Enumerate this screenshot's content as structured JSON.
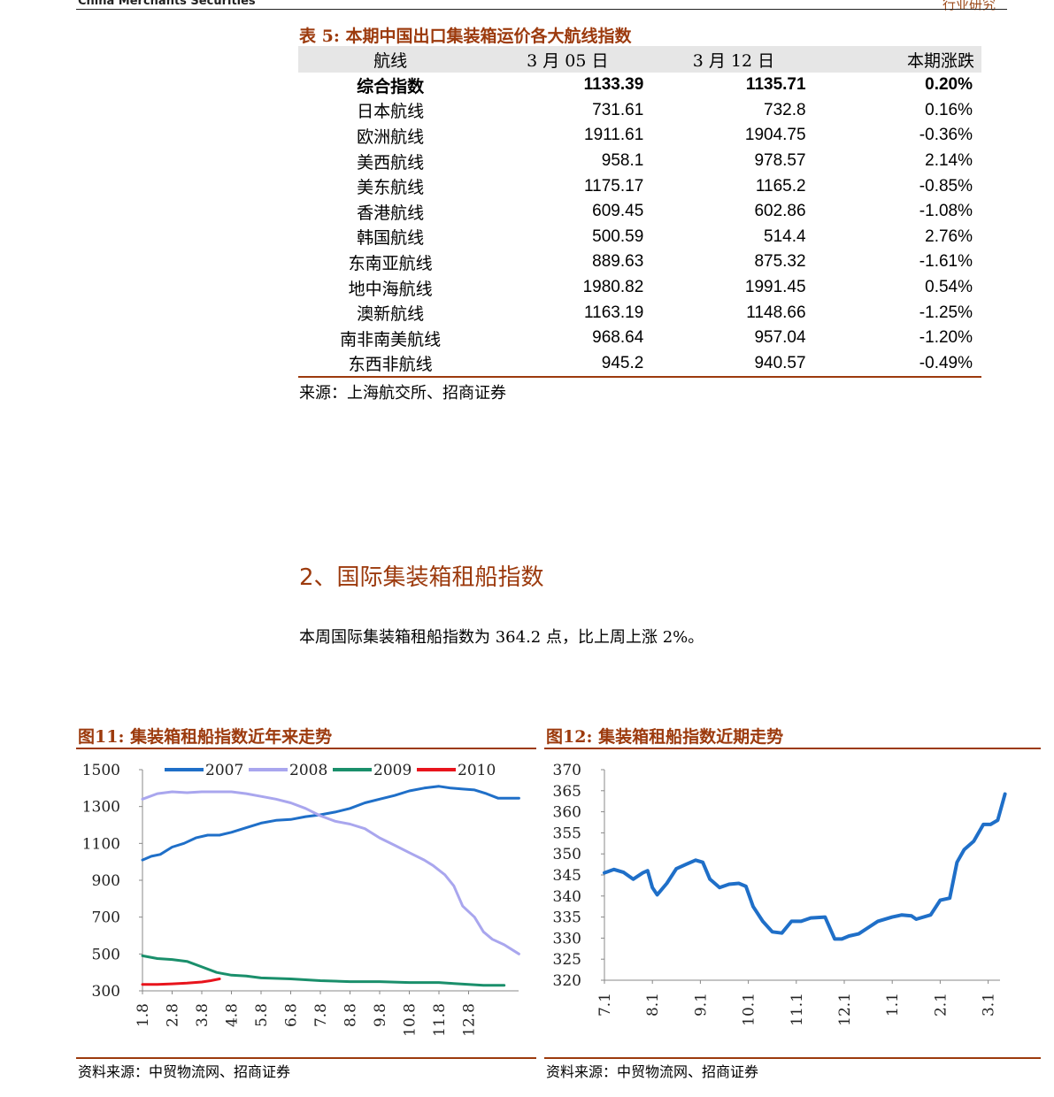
{
  "header": {
    "left": "China Merchants Securities",
    "right": "行业研究"
  },
  "table": {
    "title": "表 5:  本期中国出口集装箱运价各大航线指数",
    "headers": [
      "航线",
      "3 月 05 日",
      "3 月 12 日",
      "本期涨跌"
    ],
    "rows": [
      [
        "综合指数",
        "1133.39",
        "1135.71",
        "0.20%"
      ],
      [
        "日本航线",
        "731.61",
        "732.8",
        "0.16%"
      ],
      [
        "欧洲航线",
        "1911.61",
        "1904.75",
        "-0.36%"
      ],
      [
        "美西航线",
        "958.1",
        "978.57",
        "2.14%"
      ],
      [
        "美东航线",
        "1175.17",
        "1165.2",
        "-0.85%"
      ],
      [
        "香港航线",
        "609.45",
        "602.86",
        "-1.08%"
      ],
      [
        "韩国航线",
        "500.59",
        "514.4",
        "2.76%"
      ],
      [
        "东南亚航线",
        "889.63",
        "875.32",
        "-1.61%"
      ],
      [
        "地中海航线",
        "1980.82",
        "1991.45",
        "0.54%"
      ],
      [
        "澳新航线",
        "1163.19",
        "1148.66",
        "-1.25%"
      ],
      [
        "南非南美航线",
        "968.64",
        "957.04",
        "-1.20%"
      ],
      [
        "东西非航线",
        "945.2",
        "940.57",
        "-0.49%"
      ]
    ],
    "source": "来源：上海航交所、招商证券"
  },
  "section": {
    "title": "2、国际集装箱租船指数",
    "paragraph": "本周国际集装箱租船指数为 364.2 点，比上周上涨 2%。"
  },
  "figures": {
    "fig11_title": "图11:  集装箱租船指数近年来走势",
    "fig12_title": "图12:  集装箱租船指数近期走势",
    "fig11_source": "资料来源：中贸物流网、招商证券",
    "fig12_source": "资料来源：中贸物流网、招商证券"
  },
  "chart_data": [
    {
      "type": "line",
      "title": "图11:  集装箱租船指数近年来走势",
      "x": [
        "1.8",
        "2.8",
        "3.8",
        "4.8",
        "5.8",
        "6.8",
        "7.8",
        "8.8",
        "9.8",
        "10.8",
        "11.8",
        "12.8"
      ],
      "ylim": [
        300,
        1500
      ],
      "yticks": [
        1500,
        1300,
        1100,
        900,
        700,
        500,
        300
      ],
      "legend": "top",
      "series": [
        {
          "name": "2007",
          "color": "#1f6fc8",
          "points": [
            [
              0,
              1010
            ],
            [
              0.3,
              1030
            ],
            [
              0.6,
              1040
            ],
            [
              1,
              1080
            ],
            [
              1.4,
              1100
            ],
            [
              1.8,
              1130
            ],
            [
              2.2,
              1145
            ],
            [
              2.6,
              1145
            ],
            [
              3,
              1160
            ],
            [
              3.5,
              1185
            ],
            [
              4,
              1210
            ],
            [
              4.5,
              1225
            ],
            [
              5,
              1230
            ],
            [
              5.5,
              1245
            ],
            [
              6,
              1255
            ],
            [
              6.5,
              1270
            ],
            [
              7,
              1290
            ],
            [
              7.5,
              1320
            ],
            [
              8,
              1340
            ],
            [
              8.5,
              1360
            ],
            [
              9,
              1385
            ],
            [
              9.5,
              1400
            ],
            [
              10,
              1410
            ],
            [
              10.4,
              1400
            ],
            [
              10.8,
              1395
            ],
            [
              11.2,
              1390
            ],
            [
              11.6,
              1370
            ],
            [
              12,
              1345
            ],
            [
              12.4,
              1345
            ],
            [
              12.7,
              1345
            ]
          ]
        },
        {
          "name": "2008",
          "color": "#a9a6ee",
          "points": [
            [
              0,
              1340
            ],
            [
              0.5,
              1370
            ],
            [
              1,
              1380
            ],
            [
              1.5,
              1375
            ],
            [
              2,
              1380
            ],
            [
              2.5,
              1380
            ],
            [
              3,
              1380
            ],
            [
              3.5,
              1370
            ],
            [
              4,
              1355
            ],
            [
              4.5,
              1340
            ],
            [
              5,
              1320
            ],
            [
              5.5,
              1290
            ],
            [
              6,
              1250
            ],
            [
              6.5,
              1220
            ],
            [
              7,
              1205
            ],
            [
              7.5,
              1180
            ],
            [
              8,
              1130
            ],
            [
              8.5,
              1090
            ],
            [
              9,
              1050
            ],
            [
              9.5,
              1010
            ],
            [
              9.8,
              980
            ],
            [
              10.2,
              930
            ],
            [
              10.5,
              870
            ],
            [
              10.8,
              760
            ],
            [
              11.2,
              700
            ],
            [
              11.5,
              620
            ],
            [
              11.8,
              580
            ],
            [
              12.2,
              550
            ],
            [
              12.5,
              520
            ],
            [
              12.7,
              500
            ]
          ]
        },
        {
          "name": "2009",
          "color": "#1a8f6b",
          "points": [
            [
              0,
              490
            ],
            [
              0.5,
              475
            ],
            [
              1,
              470
            ],
            [
              1.5,
              460
            ],
            [
              2,
              430
            ],
            [
              2.5,
              400
            ],
            [
              3,
              385
            ],
            [
              3.5,
              380
            ],
            [
              4,
              370
            ],
            [
              5,
              365
            ],
            [
              6,
              355
            ],
            [
              7,
              350
            ],
            [
              8,
              350
            ],
            [
              9,
              345
            ],
            [
              10,
              345
            ],
            [
              10.5,
              340
            ],
            [
              11,
              335
            ],
            [
              11.5,
              330
            ],
            [
              12,
              330
            ],
            [
              12.2,
              330
            ]
          ]
        },
        {
          "name": "2010",
          "color": "#e8141c",
          "points": [
            [
              0,
              335
            ],
            [
              0.5,
              335
            ],
            [
              1,
              338
            ],
            [
              1.5,
              342
            ],
            [
              2,
              348
            ],
            [
              2.3,
              355
            ],
            [
              2.6,
              365
            ]
          ]
        }
      ]
    },
    {
      "type": "line",
      "title": "图12:  集装箱租船指数近期走势",
      "x": [
        "7.1",
        "8.1",
        "9.1",
        "10.1",
        "11.1",
        "12.1",
        "1.1",
        "2.1",
        "3.1"
      ],
      "ylim": [
        320,
        370
      ],
      "yticks": [
        370,
        365,
        360,
        355,
        350,
        345,
        340,
        335,
        330,
        325,
        320
      ],
      "series": [
        {
          "name": "",
          "color": "#1f6fc8",
          "points": [
            [
              0,
              345.5
            ],
            [
              0.2,
              346.3
            ],
            [
              0.4,
              345.6
            ],
            [
              0.6,
              344
            ],
            [
              0.8,
              345.5
            ],
            [
              0.9,
              346
            ],
            [
              1.0,
              342
            ],
            [
              1.1,
              340.3
            ],
            [
              1.3,
              343
            ],
            [
              1.5,
              346.5
            ],
            [
              1.7,
              347.5
            ],
            [
              1.9,
              348.5
            ],
            [
              2.05,
              348
            ],
            [
              2.2,
              344
            ],
            [
              2.4,
              342
            ],
            [
              2.6,
              342.8
            ],
            [
              2.8,
              343
            ],
            [
              2.95,
              342.3
            ],
            [
              3.1,
              337.5
            ],
            [
              3.3,
              334
            ],
            [
              3.5,
              331.5
            ],
            [
              3.7,
              331.2
            ],
            [
              3.9,
              334
            ],
            [
              4.1,
              334
            ],
            [
              4.3,
              334.8
            ],
            [
              4.6,
              335
            ],
            [
              4.8,
              329.8
            ],
            [
              4.95,
              329.8
            ],
            [
              5.1,
              330.5
            ],
            [
              5.3,
              331
            ],
            [
              5.5,
              332.5
            ],
            [
              5.7,
              334
            ],
            [
              6.0,
              335
            ],
            [
              6.2,
              335.5
            ],
            [
              6.4,
              335.3
            ],
            [
              6.5,
              334.5
            ],
            [
              6.8,
              335.5
            ],
            [
              7.0,
              339
            ],
            [
              7.2,
              339.5
            ],
            [
              7.35,
              348
            ],
            [
              7.5,
              351
            ],
            [
              7.7,
              353
            ],
            [
              7.9,
              357
            ],
            [
              8.05,
              357
            ],
            [
              8.2,
              358
            ],
            [
              8.35,
              364.2
            ]
          ]
        }
      ]
    }
  ]
}
